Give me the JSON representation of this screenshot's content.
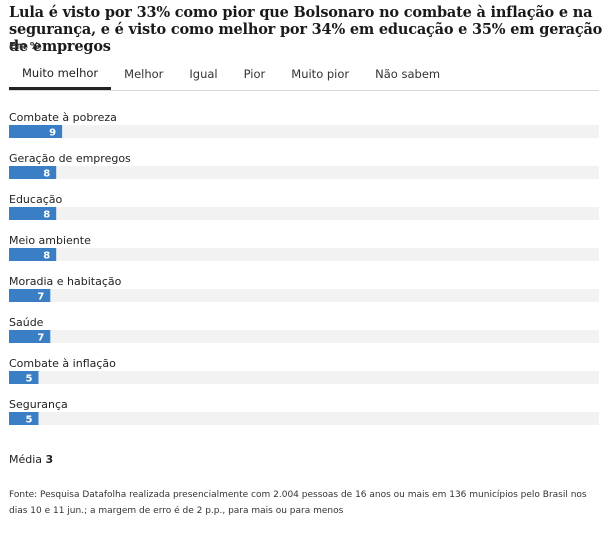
{
  "title": "Lula é visto por 33% como pior que Bolsonaro no combate à inflação e na segurança, e é visto como melhor por 34% em educação e 35% em geração de empregos",
  "subtitle": "Em %",
  "tabs": [
    {
      "label": "Muito melhor",
      "active": true
    },
    {
      "label": "Melhor",
      "active": false
    },
    {
      "label": "Igual",
      "active": false
    },
    {
      "label": "Pior",
      "active": false
    },
    {
      "label": "Muito pior",
      "active": false
    },
    {
      "label": "Não sabem",
      "active": false
    }
  ],
  "colors": {
    "bar": "#3a7fc6",
    "track": "#f2f2f2",
    "value_text": "#ffffff"
  },
  "chart_data": {
    "type": "bar",
    "orientation": "horizontal",
    "categories": [
      "Combate à pobreza",
      "Geração de empregos",
      "Educação",
      "Meio ambiente",
      "Moradia e habitação",
      "Saúde",
      "Combate à inflação",
      "Segurança"
    ],
    "values": [
      9,
      8,
      8,
      8,
      7,
      7,
      5,
      5
    ],
    "xlim": [
      0,
      100
    ],
    "grid": false
  },
  "media": {
    "label": "Média",
    "value": "3"
  },
  "source": "Fonte: Pesquisa Datafolha realizada presencialmente com 2.004 pessoas de 16 anos ou mais em 136 municípios pelo Brasil nos dias 10 e 11 jun.; a margem de erro é de 2 p.p., para mais ou para menos"
}
